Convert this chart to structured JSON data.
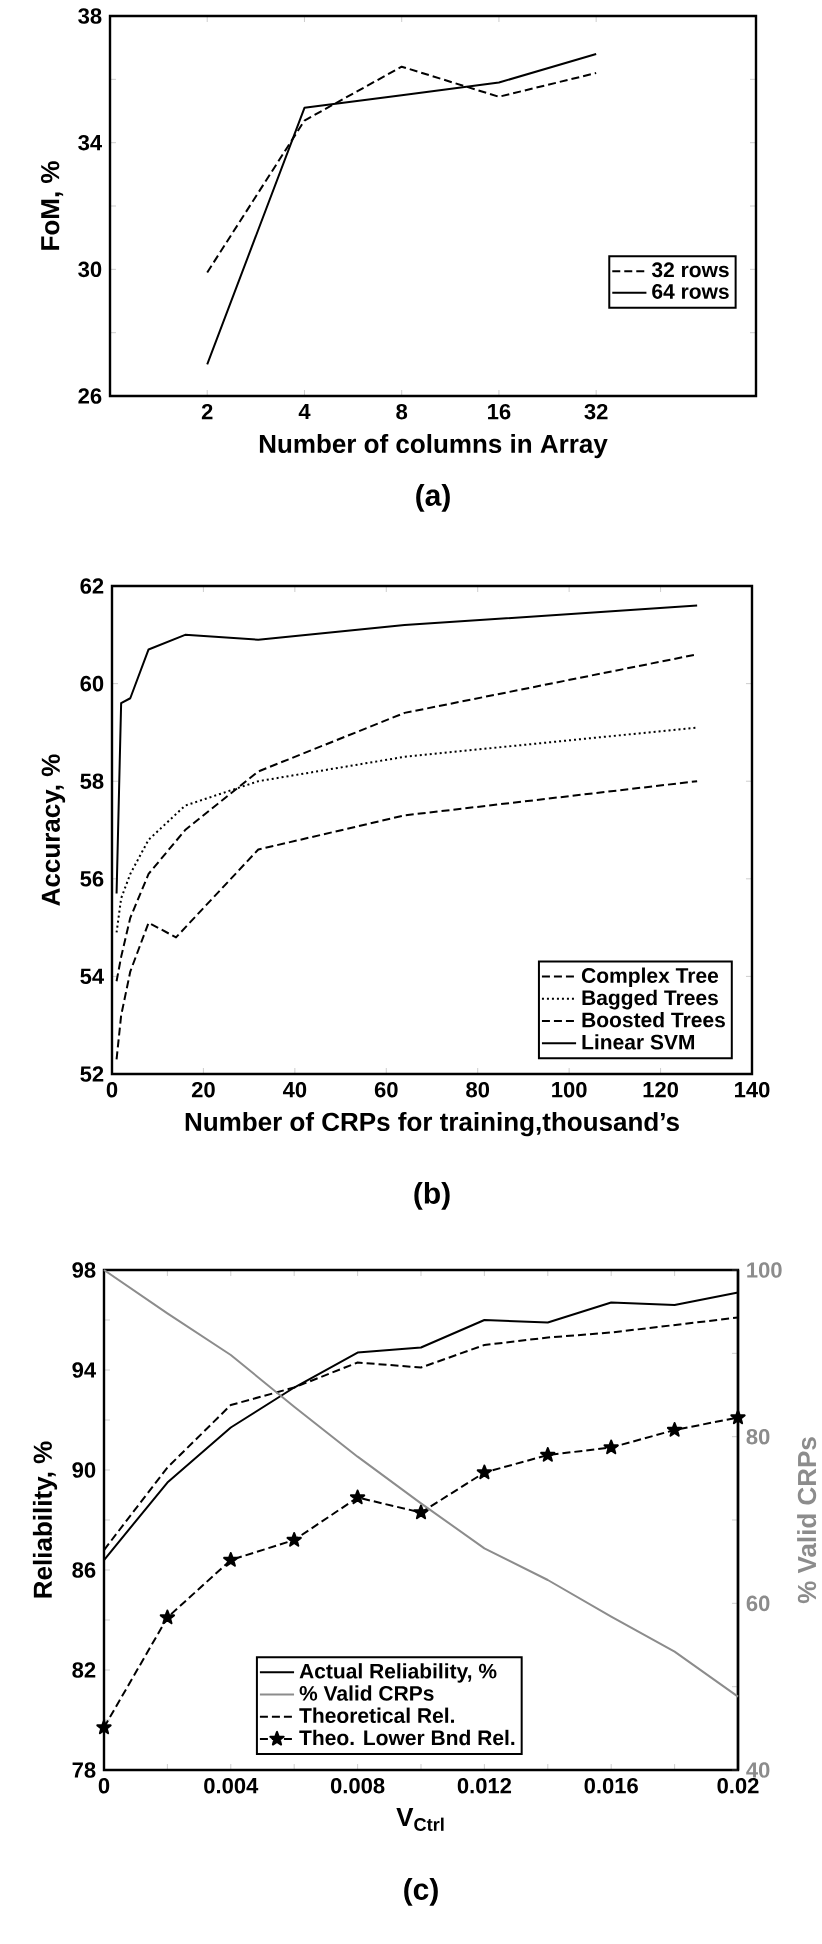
{
  "chart_data": [
    {
      "type": "line",
      "log": "x",
      "xlabel": "Number of columns in Array",
      "ylabel": "FoM, %",
      "annotations": [
        "(a)"
      ],
      "xlim": [
        1,
        100
      ],
      "xticks": [
        2,
        4,
        8,
        16,
        32
      ],
      "ylim": [
        26,
        38
      ],
      "yticks": [
        26,
        {
          "value": 28,
          "label": null
        },
        30,
        {
          "value": 32,
          "label": null
        },
        34,
        {
          "value": 36,
          "label": null
        },
        38
      ],
      "legend": "right",
      "marker": "none",
      "series": [
        {
          "name": "32 rows",
          "color": "#000000",
          "line_style": "dashed",
          "x": [
            2,
            4,
            8,
            16,
            32
          ],
          "values": [
            29.9,
            34.7,
            36.4,
            35.45,
            36.2
          ]
        },
        {
          "name": "64 rows",
          "color": "#000000",
          "line_style": "solid",
          "x": [
            2,
            4,
            8,
            16,
            32
          ],
          "values": [
            27.0,
            35.1,
            35.5,
            35.9,
            36.8
          ]
        }
      ]
    },
    {
      "type": "line",
      "xlabel": "Number of CRPs for training,thousand’s",
      "ylabel": "Accuracy, %",
      "annotations": [
        "(b)"
      ],
      "xlim": [
        0,
        140
      ],
      "xticks": [
        0,
        20,
        40,
        60,
        80,
        100,
        120,
        140
      ],
      "ylim": [
        52,
        62
      ],
      "yticks": [
        52,
        54,
        56,
        58,
        60,
        62
      ],
      "legend": "bottom right",
      "marker": "none",
      "series": [
        {
          "name": "Complex Tree",
          "color": "#000000",
          "line_style": "dashed",
          "x": [
            1,
            2,
            4,
            8,
            14,
            32,
            64,
            128
          ],
          "values": [
            52.3,
            53.2,
            54.1,
            55.1,
            54.8,
            56.6,
            57.3,
            58.0
          ]
        },
        {
          "name": "Bagged Trees",
          "color": "#000000",
          "line_style": "dotted",
          "x": [
            1,
            2,
            4,
            8,
            16,
            32,
            64,
            128
          ],
          "values": [
            54.9,
            55.6,
            56.1,
            56.8,
            57.5,
            58.0,
            58.5,
            59.1
          ]
        },
        {
          "name": "Boosted Trees",
          "color": "#000000",
          "line_style": "dashed",
          "x": [
            1,
            2,
            4,
            8,
            16,
            32,
            64,
            128
          ],
          "values": [
            53.9,
            54.4,
            55.2,
            56.1,
            57.0,
            58.2,
            59.4,
            60.6
          ]
        },
        {
          "name": "Linear SVM",
          "color": "#000000",
          "line_style": "solid",
          "x": [
            1,
            2,
            4,
            8,
            16,
            32,
            64,
            128
          ],
          "values": [
            55.7,
            59.6,
            59.7,
            60.7,
            61.0,
            60.9,
            61.2,
            61.6
          ]
        }
      ]
    },
    {
      "type": "line",
      "xlabel": "V$_{Ctrl}$",
      "ylabel": "Reliability, %",
      "y2label": "% Valid CRPs",
      "annotations": [
        "(c)"
      ],
      "xlim": [
        0,
        0.02
      ],
      "xticks": [
        0,
        {
          "value": 0.002,
          "label": null
        },
        0.004,
        {
          "value": 0.006,
          "label": null
        },
        0.008,
        {
          "value": 0.01,
          "label": null
        },
        0.012,
        {
          "value": 0.014,
          "label": null
        },
        0.016,
        {
          "value": 0.018,
          "label": null
        },
        0.02
      ],
      "ylim": [
        78,
        98
      ],
      "yticks": [
        78,
        {
          "value": 80,
          "label": null
        },
        82,
        {
          "value": 84,
          "label": null
        },
        86,
        {
          "value": 88,
          "label": null
        },
        90,
        {
          "value": 92,
          "label": null
        },
        94,
        {
          "value": 96,
          "label": null
        },
        98
      ],
      "y2lim": [
        40,
        100
      ],
      "y2ticks": [
        40,
        {
          "value": 50,
          "label": null
        },
        60,
        {
          "value": 70,
          "label": null
        },
        80,
        {
          "value": 90,
          "label": null
        },
        100
      ],
      "legend": "bottom",
      "series": [
        {
          "name": "Actual Reliability, %",
          "color": "#000000",
          "line_style": "solid",
          "marker": "none",
          "x": [
            0,
            0.002,
            0.004,
            0.006,
            0.008,
            0.01,
            0.012,
            0.014,
            0.016,
            0.018,
            0.02
          ],
          "values": [
            86.4,
            89.5,
            91.7,
            93.3,
            94.7,
            94.9,
            96.0,
            95.9,
            96.7,
            96.6,
            97.1
          ]
        },
        {
          "name": "% Valid CRPs",
          "color": "#8c8c8c",
          "line_style": "solid",
          "marker": "none",
          "axis": "y2",
          "x": [
            0,
            0.002,
            0.004,
            0.006,
            0.008,
            0.01,
            0.012,
            0.014,
            0.016,
            0.018,
            0.02
          ],
          "values": [
            100,
            94.8,
            89.8,
            83.6,
            77.6,
            72.0,
            66.6,
            62.8,
            58.4,
            54.2,
            48.8
          ]
        },
        {
          "name": "Theoretical Rel.",
          "color": "#000000",
          "line_style": "dashed",
          "marker": "none",
          "x": [
            0,
            0.002,
            0.004,
            0.006,
            0.008,
            0.01,
            0.012,
            0.014,
            0.016,
            0.018,
            0.02
          ],
          "values": [
            86.8,
            90.1,
            92.6,
            93.3,
            94.3,
            94.1,
            95.0,
            95.3,
            95.5,
            95.8,
            96.1
          ]
        },
        {
          "name": "Theo. Lower Bnd Rel.",
          "color": "#000000",
          "line_style": "dashed",
          "marker": "star",
          "x": [
            0,
            0.002,
            0.004,
            0.006,
            0.008,
            0.01,
            0.012,
            0.014,
            0.016,
            0.018,
            0.02
          ],
          "values": [
            79.7,
            84.1,
            86.4,
            87.2,
            88.9,
            88.3,
            89.9,
            90.6,
            90.9,
            91.6,
            92.1
          ]
        }
      ]
    }
  ]
}
